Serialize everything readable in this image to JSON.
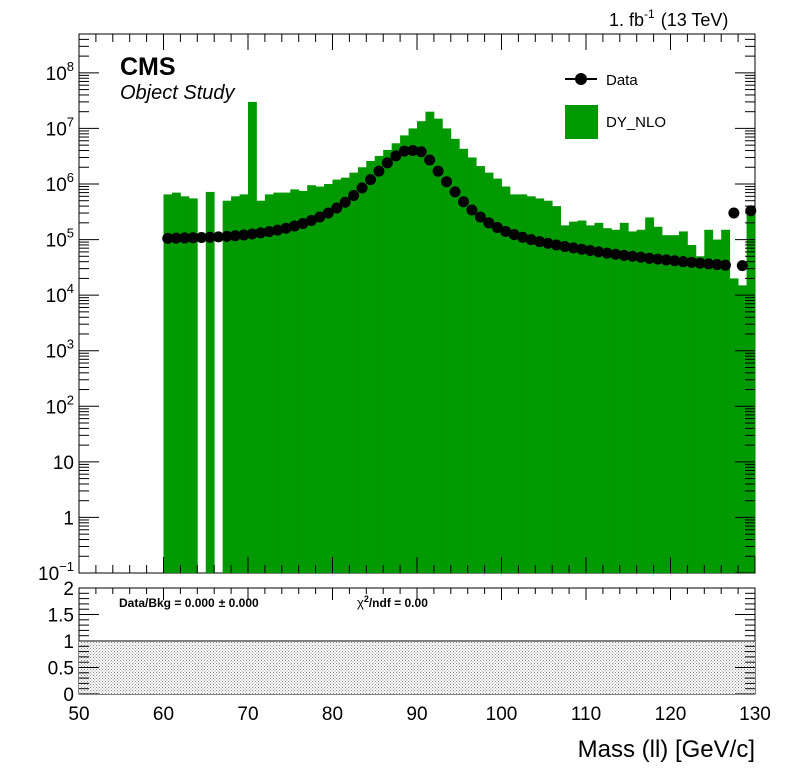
{
  "header": {
    "lumi_value": "1. fb",
    "lumi_exp": "-1",
    "energy": "(13 TeV)",
    "experiment": "CMS",
    "extra": "Object Study"
  },
  "legend": {
    "data_label": "Data",
    "mc_label": "DY_NLO"
  },
  "ratio": {
    "data_bkg": "Data/Bkg = 0.000",
    "pm": "± 0.000",
    "chi2_sym": "χ",
    "chi2_sup": "2",
    "chi2_rest": "/ndf = 0.00"
  },
  "colors": {
    "mc_fill": "#009900",
    "data_marker": "#000000",
    "band": "#999999"
  },
  "chart_data": [
    {
      "type": "bar",
      "xlabel": "Mass (ll) [GeV/c]",
      "ylabel": "",
      "log_y": true,
      "xlim": [
        50,
        130
      ],
      "ylim": [
        0.1,
        500000000
      ],
      "y_tick_labels": [
        {
          "base": "10",
          "exp": "−1",
          "value": 0.1
        },
        {
          "base": "1",
          "exp": "",
          "value": 1
        },
        {
          "base": "10",
          "exp": "",
          "value": 10
        },
        {
          "base": "10",
          "exp": "2",
          "value": 100
        },
        {
          "base": "10",
          "exp": "3",
          "value": 1000
        },
        {
          "base": "10",
          "exp": "4",
          "value": 10000
        },
        {
          "base": "10",
          "exp": "5",
          "value": 100000
        },
        {
          "base": "10",
          "exp": "6",
          "value": 1000000
        },
        {
          "base": "10",
          "exp": "7",
          "value": 10000000
        },
        {
          "base": "10",
          "exp": "8",
          "value": 100000000
        }
      ],
      "x_ticks": [
        "50",
        "60",
        "70",
        "80",
        "90",
        "100",
        "110",
        "120",
        "130"
      ],
      "bin_width": 1,
      "series": [
        {
          "name": "DY_NLO",
          "style": "histogram",
          "bin_low_edges": [
            50,
            51,
            52,
            53,
            54,
            55,
            56,
            57,
            58,
            59,
            60,
            61,
            62,
            63,
            64,
            65,
            66,
            67,
            68,
            69,
            70,
            71,
            72,
            73,
            74,
            75,
            76,
            77,
            78,
            79,
            80,
            81,
            82,
            83,
            84,
            85,
            86,
            87,
            88,
            89,
            90,
            91,
            92,
            93,
            94,
            95,
            96,
            97,
            98,
            99,
            100,
            101,
            102,
            103,
            104,
            105,
            106,
            107,
            108,
            109,
            110,
            111,
            112,
            113,
            114,
            115,
            116,
            117,
            118,
            119,
            120,
            121,
            122,
            123,
            124,
            125,
            126,
            127,
            128,
            129
          ],
          "values": [
            0,
            0,
            0,
            0,
            0,
            0,
            0,
            0,
            0,
            0,
            650000,
            700000,
            600000,
            550000,
            0,
            720000,
            0,
            500000,
            600000,
            650000,
            30000000,
            500000,
            650000,
            700000,
            700000,
            800000,
            750000,
            950000,
            900000,
            1000000,
            1200000,
            1300000,
            1600000,
            2000000,
            2600000,
            3200000,
            4100000,
            5400000,
            7500000,
            10000000,
            13500000,
            20000000,
            15000000,
            10000000,
            6500000,
            4300000,
            3000000,
            2100000,
            1600000,
            1250000,
            900000,
            650000,
            650000,
            600000,
            550000,
            500000,
            400000,
            180000,
            210000,
            220000,
            180000,
            200000,
            160000,
            150000,
            200000,
            140000,
            150000,
            250000,
            170000,
            120000,
            120000,
            140000,
            80000,
            50000,
            150000,
            100000,
            150000,
            20000,
            15000,
            350000
          ]
        },
        {
          "name": "Data",
          "style": "markers",
          "x": [
            60.5,
            61.5,
            62.5,
            63.5,
            64.5,
            65.5,
            66.5,
            67.5,
            68.5,
            69.5,
            70.5,
            71.5,
            72.5,
            73.5,
            74.5,
            75.5,
            76.5,
            77.5,
            78.5,
            79.5,
            80.5,
            81.5,
            82.5,
            83.5,
            84.5,
            85.5,
            86.5,
            87.5,
            88.5,
            89.5,
            90.5,
            91.5,
            92.5,
            93.5,
            94.5,
            95.5,
            96.5,
            97.5,
            98.5,
            99.5,
            100.5,
            101.5,
            102.5,
            103.5,
            104.5,
            105.5,
            106.5,
            107.5,
            108.5,
            109.5,
            110.5,
            111.5,
            112.5,
            113.5,
            114.5,
            115.5,
            116.5,
            117.5,
            118.5,
            119.5,
            120.5,
            121.5,
            122.5,
            123.5,
            124.5,
            125.5,
            126.5,
            127.5,
            128.5,
            129.5
          ],
          "y": [
            105000,
            106000,
            107000,
            108000,
            109000,
            110000,
            112000,
            114000,
            117000,
            121000,
            126000,
            132000,
            139000,
            148000,
            160000,
            175000,
            195000,
            220000,
            255000,
            300000,
            370000,
            470000,
            620000,
            850000,
            1200000,
            1700000,
            2400000,
            3200000,
            3900000,
            4000000,
            3800000,
            2700000,
            1700000,
            1100000,
            720000,
            480000,
            340000,
            255000,
            200000,
            165000,
            140000,
            123000,
            110000,
            100000,
            92000,
            86000,
            80000,
            75000,
            71000,
            67000,
            63500,
            60000,
            57000,
            54500,
            52000,
            50000,
            48000,
            46000,
            44500,
            43000,
            41500,
            40000,
            38800,
            37600,
            36500,
            35500,
            34600,
            300000,
            34000,
            330000
          ]
        }
      ]
    },
    {
      "type": "line",
      "xlabel": "Mass (ll) [GeV/c]",
      "ylabel": "",
      "xlim": [
        50,
        130
      ],
      "ylim": [
        0,
        2
      ],
      "y_ticks": [
        "0",
        "0.5",
        "1",
        "1.5",
        "2"
      ],
      "reference_line": 1,
      "band": [
        0,
        1
      ]
    }
  ]
}
